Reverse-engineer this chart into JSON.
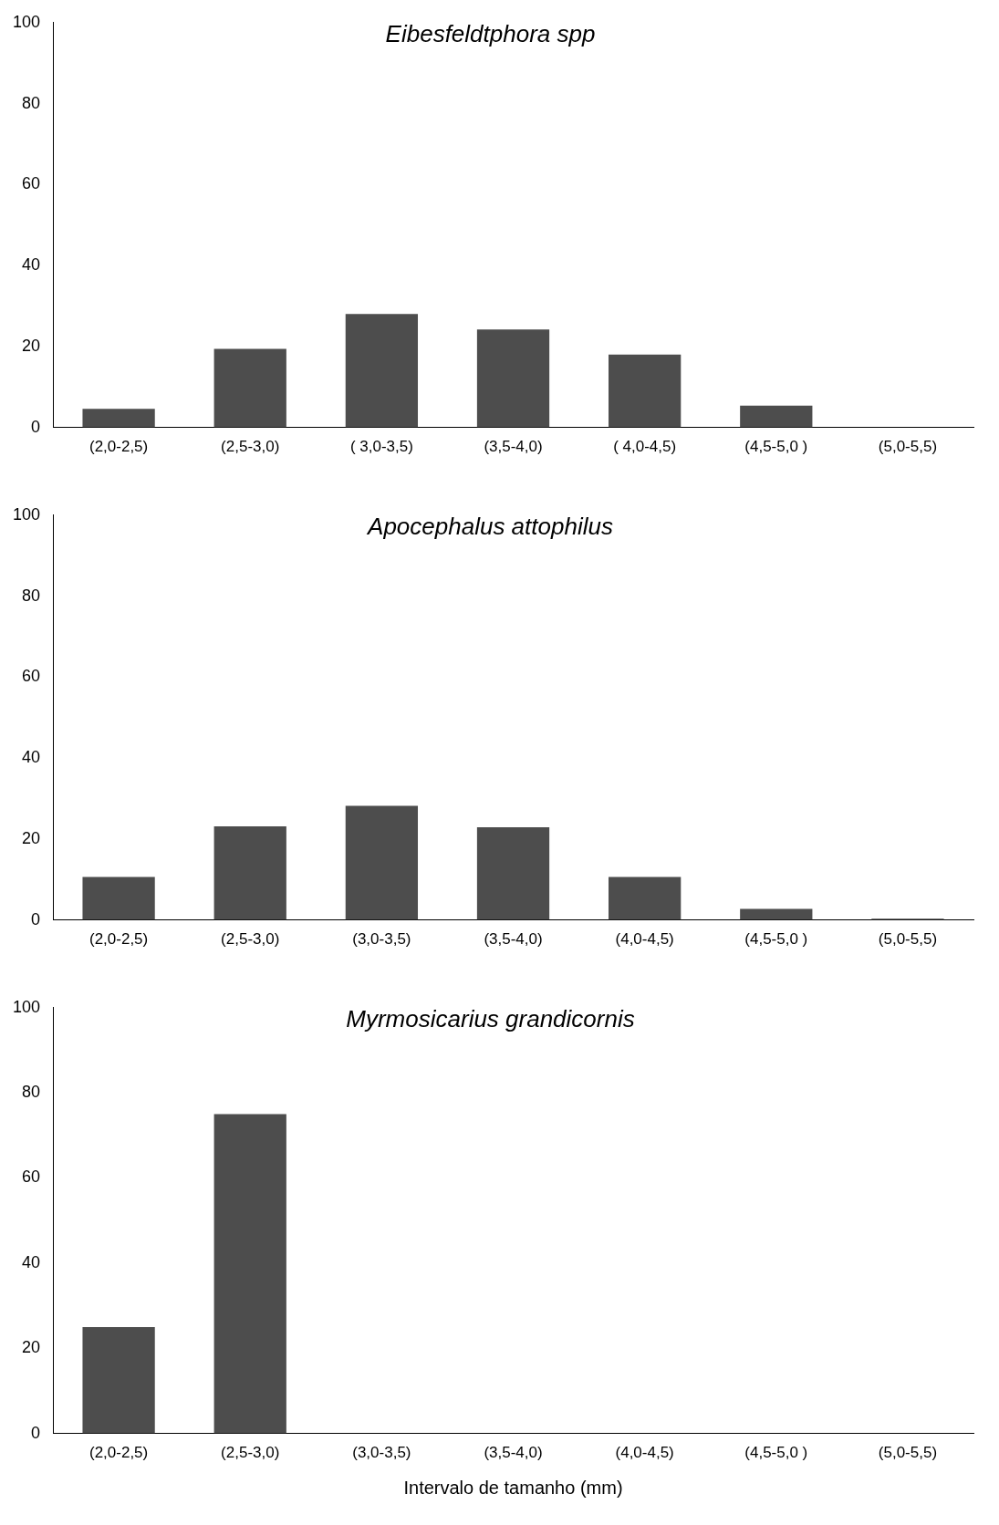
{
  "chart_data": [
    {
      "type": "bar",
      "title": "Eibesfeldtphora spp",
      "categories": [
        "(2,0-2,5)",
        "(2,5-3,0)",
        "( 3,0-3,5)",
        "(3,5-4,0)",
        "( 4,0-4,5)",
        "(4,5-5,0 )",
        "(5,0-5,5)"
      ],
      "values": [
        4.6,
        19.4,
        28,
        24.2,
        18,
        5.4,
        0
      ],
      "color": "#4d4d4d",
      "ylim": [
        0,
        100
      ],
      "yticks": [
        0,
        20,
        40,
        60,
        80,
        100
      ],
      "grid": false,
      "legend": false
    },
    {
      "type": "bar",
      "title": "Apocephalus attophilus",
      "categories": [
        "(2,0-2,5)",
        "(2,5-3,0)",
        "(3,0-3,5)",
        "(3,5-4,0)",
        "(4,0-4,5)",
        "(4,5-5,0 )",
        "(5,0-5,5)"
      ],
      "values": [
        10.6,
        23.1,
        28.2,
        22.9,
        10.6,
        2.7,
        0.3
      ],
      "color": "#4d4d4d",
      "ylim": [
        0,
        100
      ],
      "yticks": [
        0,
        20,
        40,
        60,
        80,
        100
      ],
      "grid": false,
      "legend": false
    },
    {
      "type": "bar",
      "title": "Myrmosicarius grandicornis",
      "xlabel": "Intervalo de tamanho (mm)",
      "categories": [
        "(2,0-2,5)",
        "(2,5-3,0)",
        "(3,0-3,5)",
        "(3,5-4,0)",
        "(4,0-4,5)",
        "(4,5-5,0 )",
        "(5,0-5,5)"
      ],
      "values": [
        25,
        75,
        0,
        0,
        0,
        0,
        0
      ],
      "color": "#4d4d4d",
      "ylim": [
        0,
        100
      ],
      "yticks": [
        0,
        20,
        40,
        60,
        80,
        100
      ],
      "grid": false,
      "legend": false
    }
  ]
}
